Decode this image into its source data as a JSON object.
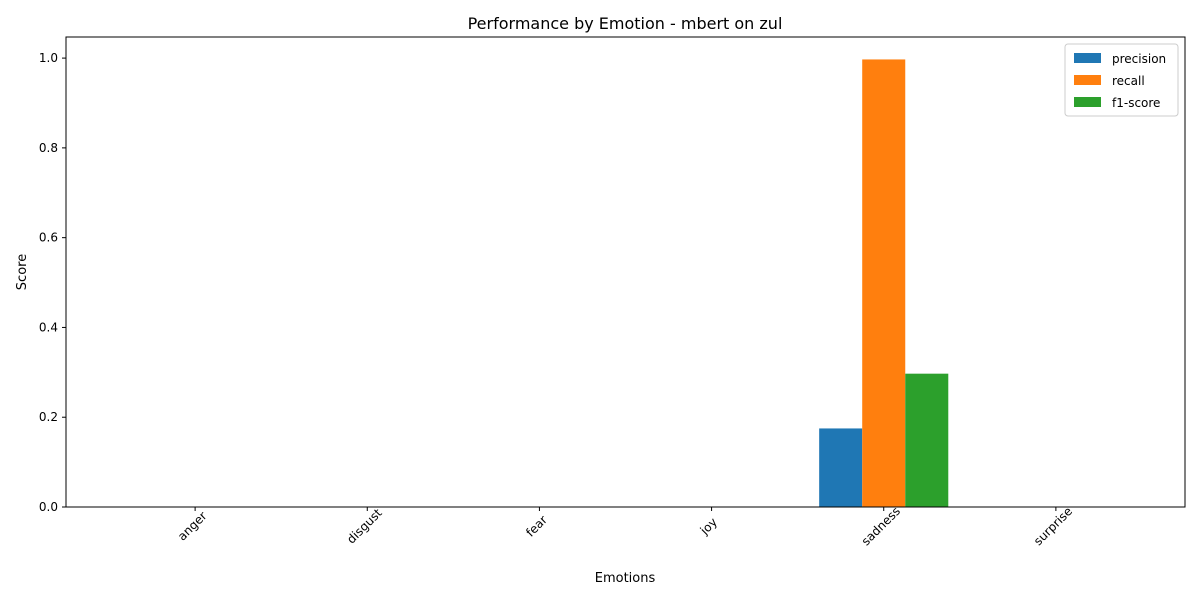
{
  "chart_data": {
    "type": "bar",
    "title": "Performance by Emotion - mbert on zul",
    "xlabel": "Emotions",
    "ylabel": "Score",
    "categories": [
      "anger",
      "disgust",
      "fear",
      "joy",
      "sadness",
      "surprise"
    ],
    "series": [
      {
        "name": "precision",
        "color": "#1f77b4",
        "values": [
          0,
          0,
          0,
          0,
          0.175,
          0
        ]
      },
      {
        "name": "recall",
        "color": "#ff7f0e",
        "values": [
          0,
          0,
          0,
          0,
          0.997,
          0
        ]
      },
      {
        "name": "f1-score",
        "color": "#2ca02c",
        "values": [
          0,
          0,
          0,
          0,
          0.297,
          0
        ]
      }
    ],
    "ylim": [
      0,
      1.047
    ],
    "yticks": [
      0.0,
      0.2,
      0.4,
      0.6,
      0.8,
      1.0
    ],
    "ytick_labels": [
      "0.0",
      "0.2",
      "0.4",
      "0.6",
      "0.8",
      "1.0"
    ],
    "legend_position": "top-right",
    "grid": false
  }
}
